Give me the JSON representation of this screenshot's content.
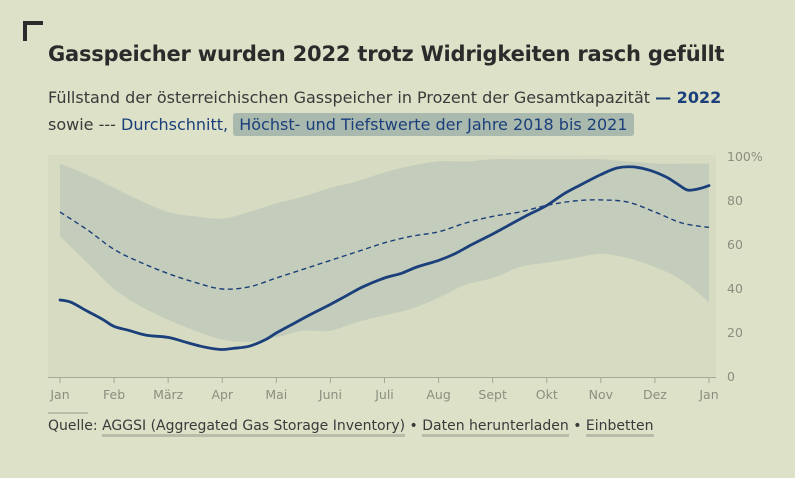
{
  "header": {
    "title": "Gasspeicher wurden 2022 trotz Widrigkeiten rasch gefüllt",
    "subtitle_text": "Füllstand der österreichischen Gasspeicher in Prozent der Gesamtkapazität",
    "legend_2022": "— 2022",
    "legend_mid": "sowie ---",
    "legend_avg": "Durchschnitt,",
    "legend_range": "Höchst- und Tiefstwerte der Jahre 2018 bis 2021"
  },
  "footer": {
    "source_label": "Quelle:",
    "source_link": "AGGSI (Aggregated Gas Storage Inventory)",
    "sep1": "•",
    "download_link": "Daten herunterladen",
    "sep2": "•",
    "embed_link": "Einbetten"
  },
  "colors": {
    "background": "#dce1c7",
    "series_2022": "#1b3f7a",
    "average": "#1b3f7a",
    "range_band": "#c3ccbb"
  },
  "chart_data": {
    "type": "line",
    "x_labels": [
      "Jan",
      "Feb",
      "März",
      "Apr",
      "Mai",
      "Juni",
      "Juli",
      "Aug",
      "Sept",
      "Okt",
      "Nov",
      "Dez",
      "Jan"
    ],
    "y_ticks": [
      "0",
      "20",
      "40",
      "60",
      "80",
      "100%"
    ],
    "ylim": [
      0,
      100
    ],
    "xlim": [
      0,
      12
    ],
    "grid": false,
    "series": [
      {
        "name": "2022",
        "x": [
          0,
          0.2,
          0.5,
          0.8,
          1.0,
          1.3,
          1.6,
          2.0,
          2.3,
          2.6,
          2.8,
          3.0,
          3.2,
          3.5,
          3.8,
          4.0,
          4.3,
          4.6,
          5.0,
          5.3,
          5.6,
          6.0,
          6.3,
          6.6,
          7.0,
          7.3,
          7.6,
          8.0,
          8.3,
          8.6,
          9.0,
          9.3,
          9.6,
          10.0,
          10.3,
          10.6,
          10.9,
          11.2,
          11.4,
          11.6,
          11.8,
          12.0
        ],
        "values": [
          35,
          34,
          30,
          26,
          23,
          21,
          19,
          18,
          16,
          14,
          13,
          12.5,
          13,
          14,
          17,
          20,
          24,
          28,
          33,
          37,
          41,
          45,
          47,
          50,
          53,
          56,
          60,
          65,
          69,
          73,
          78,
          83,
          87,
          92,
          95,
          95.5,
          94,
          91,
          88,
          85,
          85.5,
          87
        ]
      },
      {
        "name": "Durchschnitt",
        "x": [
          0,
          0.5,
          1.0,
          1.5,
          2.0,
          2.5,
          3.0,
          3.5,
          4.0,
          4.5,
          5.0,
          5.5,
          6.0,
          6.5,
          7.0,
          7.5,
          8.0,
          8.5,
          9.0,
          9.5,
          10.0,
          10.5,
          11.0,
          11.5,
          12.0
        ],
        "values": [
          75,
          67,
          58,
          52,
          47,
          43,
          40,
          41,
          45,
          49,
          53,
          57,
          61,
          64,
          66,
          70,
          73,
          75,
          78,
          80,
          80.5,
          79.5,
          75,
          70,
          68
        ]
      }
    ],
    "range_band": {
      "name": "Höchst- und Tiefstwerte der Jahre 2018 bis 2021",
      "x": [
        0,
        0.5,
        1.0,
        1.5,
        2.0,
        2.5,
        3.0,
        3.5,
        4.0,
        4.5,
        5.0,
        5.5,
        6.0,
        6.5,
        7.0,
        7.5,
        8.0,
        8.5,
        9.0,
        9.5,
        10.0,
        10.5,
        11.0,
        11.5,
        12.0
      ],
      "max": [
        97,
        92,
        86,
        80,
        75,
        73,
        72,
        75,
        79,
        82,
        86,
        89,
        93,
        96,
        98,
        98,
        99,
        99,
        99,
        99,
        99,
        98,
        97,
        97,
        97
      ],
      "min": [
        64,
        52,
        40,
        32,
        26,
        21,
        17,
        16,
        18,
        21,
        21,
        25,
        28,
        31,
        36,
        42,
        45,
        50,
        52,
        54,
        56,
        54,
        50,
        44,
        34
      ]
    }
  }
}
